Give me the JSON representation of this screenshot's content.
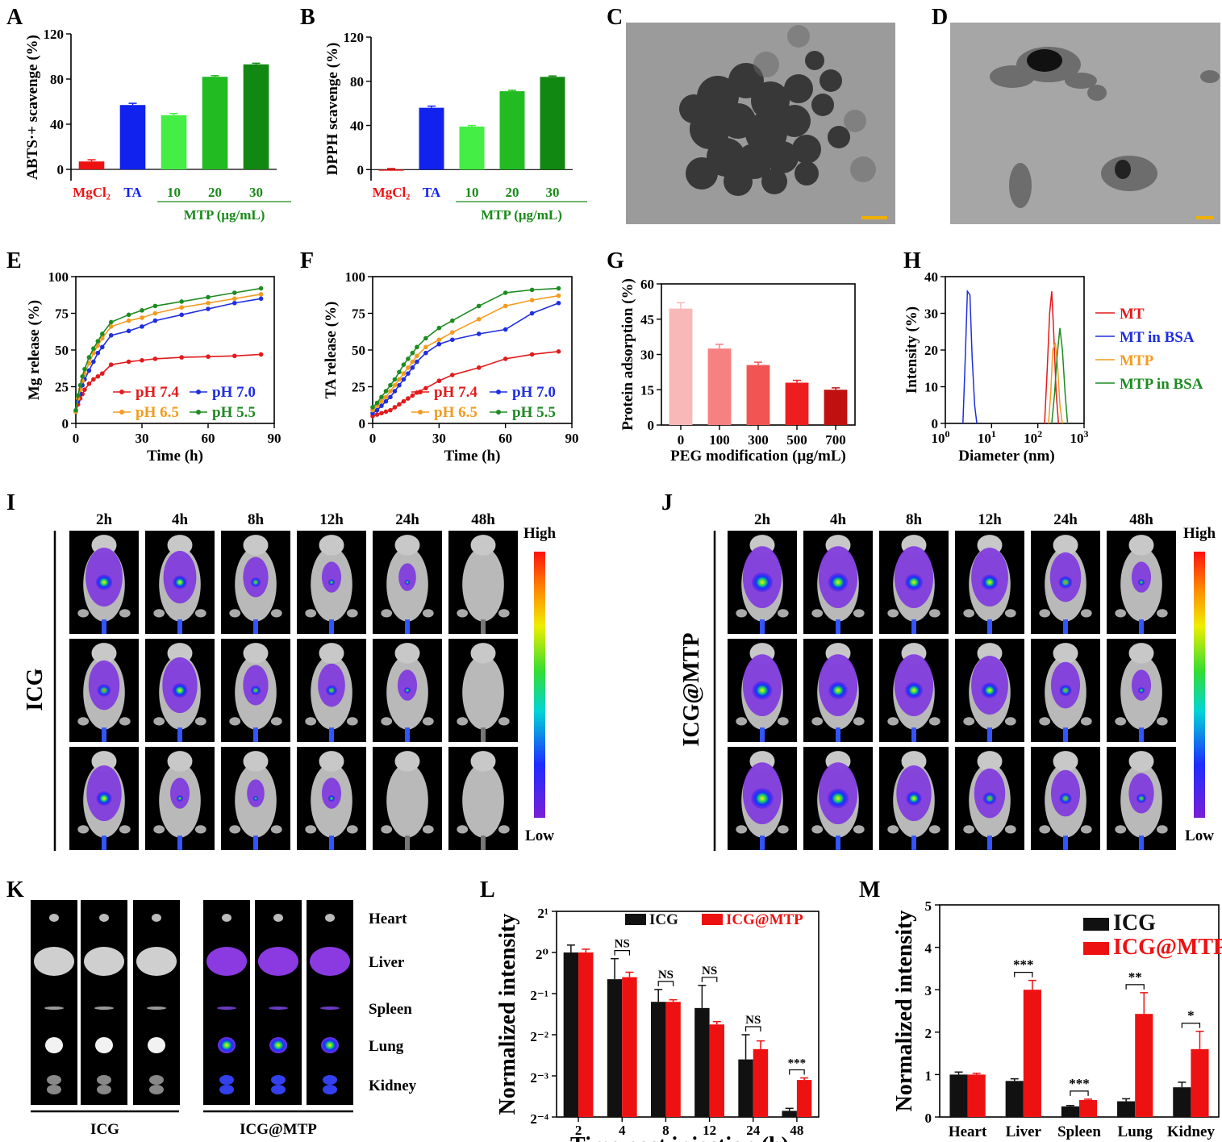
{
  "panel_letters": [
    "A",
    "B",
    "C",
    "D",
    "E",
    "F",
    "G",
    "H",
    "I",
    "J",
    "K",
    "L",
    "M"
  ],
  "colors": {
    "red": "#ee1111",
    "blue": "#1122ee",
    "lightgreen": "#44ee44",
    "green": "#22bb22",
    "darkgreen": "#118811",
    "orange": "#f39c12",
    "pH74": "#e31a1c",
    "pH70": "#1f2ee0",
    "pH65": "#f39b1f",
    "pH55": "#1e8b22"
  },
  "panelI": {
    "times": [
      "2h",
      "4h",
      "8h",
      "12h",
      "24h",
      "48h"
    ],
    "group": "ICG",
    "scale_high": "High",
    "scale_low": "Low"
  },
  "panelJ": {
    "times": [
      "2h",
      "4h",
      "8h",
      "12h",
      "24h",
      "48h"
    ],
    "group": "ICG@MTP",
    "scale_high": "High",
    "scale_low": "Low"
  },
  "panelK": {
    "organs": [
      "Heart",
      "Liver",
      "Spleen",
      "Lung",
      "Kidney"
    ],
    "groups": [
      "ICG",
      "ICG@MTP"
    ]
  },
  "chart_data": [
    {
      "panel": "A",
      "type": "bar",
      "ylabel": "ABTS·+ scavenge (%)",
      "ylim": [
        -10,
        120
      ],
      "yticks": [
        0,
        40,
        80,
        120
      ],
      "categories": [
        "MgCl2",
        "TA",
        "10",
        "20",
        "30"
      ],
      "category_labels": [
        "MgCl₂",
        "TA",
        "10",
        "20",
        "30"
      ],
      "group_label": "MTP (μg/mL)",
      "values": [
        7,
        57,
        48,
        82,
        93
      ],
      "errors": [
        1.5,
        1.5,
        1.5,
        1,
        1
      ],
      "bar_colors": [
        "#ee1111",
        "#1122ee",
        "#44ee44",
        "#22bb22",
        "#118811"
      ]
    },
    {
      "panel": "B",
      "type": "bar",
      "ylabel": "DPPH scavenge (%)",
      "ylim": [
        -10,
        120
      ],
      "yticks": [
        0,
        40,
        80,
        120
      ],
      "categories": [
        "MgCl2",
        "TA",
        "10",
        "20",
        "30"
      ],
      "category_labels": [
        "MgCl₂",
        "TA",
        "10",
        "20",
        "30"
      ],
      "group_label": "MTP (μg/mL)",
      "values": [
        -1,
        56,
        39,
        71,
        84
      ],
      "errors": [
        2,
        1.5,
        1,
        0.8,
        0.8
      ],
      "bar_colors": [
        "#ee1111",
        "#1122ee",
        "#44ee44",
        "#22bb22",
        "#118811"
      ]
    },
    {
      "panel": "E",
      "type": "line",
      "xlabel": "Time (h)",
      "ylabel": "Mg release (%)",
      "xlim": [
        0,
        90
      ],
      "ylim": [
        0,
        100
      ],
      "xticks": [
        0,
        30,
        60,
        90
      ],
      "yticks": [
        0,
        25,
        50,
        75,
        100
      ],
      "x": [
        0,
        1,
        2,
        3,
        4,
        6,
        8,
        10,
        12,
        16,
        24,
        30,
        36,
        48,
        60,
        72,
        84
      ],
      "series": [
        {
          "name": "pH 7.4",
          "color": "#e31a1c",
          "values": [
            8,
            13,
            17,
            20,
            23,
            27,
            30,
            32,
            34,
            40,
            42,
            43,
            44,
            45,
            45.5,
            46,
            47
          ]
        },
        {
          "name": "pH 7.0",
          "color": "#1f2ee0",
          "values": [
            8,
            15,
            20,
            26,
            30,
            36,
            42,
            48,
            52,
            60,
            63,
            66,
            70,
            74,
            78,
            82,
            85
          ]
        },
        {
          "name": "pH 6.5",
          "color": "#f39b1f",
          "values": [
            8,
            17,
            23,
            29,
            34,
            41,
            48,
            53,
            58,
            66,
            70,
            72,
            75,
            79,
            82,
            85,
            88
          ]
        },
        {
          "name": "pH 5.5",
          "color": "#1e8b22",
          "values": [
            9,
            19,
            26,
            32,
            37,
            45,
            51,
            56,
            61,
            69,
            74,
            77,
            80,
            83,
            86,
            89,
            92
          ]
        }
      ]
    },
    {
      "panel": "F",
      "type": "line",
      "xlabel": "Time (h)",
      "ylabel": "TA release (%)",
      "xlim": [
        0,
        90
      ],
      "ylim": [
        0,
        100
      ],
      "xticks": [
        0,
        30,
        60,
        90
      ],
      "yticks": [
        0,
        25,
        50,
        75,
        100
      ],
      "x": [
        0,
        2,
        4,
        6,
        8,
        10,
        12,
        14,
        16,
        18,
        20,
        24,
        30,
        36,
        48,
        60,
        72,
        84
      ],
      "series": [
        {
          "name": "pH 7.4",
          "color": "#e31a1c",
          "values": [
            5,
            6,
            7,
            8,
            9,
            11,
            13,
            15,
            17,
            19,
            21,
            24,
            29,
            33,
            38,
            44,
            47,
            49
          ]
        },
        {
          "name": "pH 7.0",
          "color": "#1f2ee0",
          "values": [
            7,
            9,
            12,
            15,
            18,
            22,
            26,
            30,
            34,
            38,
            42,
            48,
            54,
            57,
            61,
            64,
            75,
            82
          ]
        },
        {
          "name": "pH 6.5",
          "color": "#f39b1f",
          "values": [
            9,
            12,
            15,
            18,
            22,
            26,
            30,
            34,
            38,
            42,
            46,
            52,
            57,
            62,
            71,
            80,
            84,
            87
          ]
        },
        {
          "name": "pH 5.5",
          "color": "#1e8b22",
          "values": [
            11,
            14,
            18,
            22,
            26,
            30,
            35,
            40,
            44,
            48,
            52,
            58,
            65,
            70,
            80,
            89,
            91,
            92
          ]
        }
      ]
    },
    {
      "panel": "G",
      "type": "bar",
      "xlabel": "PEG modification (μg/mL)",
      "ylabel": "Protein adsorption (%)",
      "ylim": [
        0,
        60
      ],
      "yticks": [
        0,
        15,
        30,
        45,
        60
      ],
      "categories": [
        "0",
        "100",
        "300",
        "500",
        "700"
      ],
      "values": [
        49.5,
        32.5,
        25.5,
        18,
        15
      ],
      "errors": [
        2.5,
        1.8,
        1.2,
        1,
        0.8
      ],
      "bar_colors": [
        "#f9b8b8",
        "#f78080",
        "#f25454",
        "#ee1e1e",
        "#c01010"
      ]
    },
    {
      "panel": "H",
      "type": "line",
      "xlabel": "Diameter  (nm)",
      "ylabel": "Intensity (%)",
      "xscale": "log",
      "xlim": [
        1,
        1000
      ],
      "ylim": [
        0,
        40
      ],
      "yticks": [
        0,
        10,
        20,
        30,
        40
      ],
      "legend": "right",
      "series": [
        {
          "name": "MT",
          "color": "#e31a1c",
          "x": [
            140,
            160,
            180,
            200,
            220,
            250,
            280
          ],
          "values": [
            0,
            15,
            30,
            36,
            25,
            8,
            0
          ]
        },
        {
          "name": "MT in BSA",
          "color": "#1f2ee0",
          "x": [
            2.4,
            2.7,
            3.0,
            3.4,
            3.8,
            4.3,
            4.8
          ],
          "values": [
            0,
            18,
            36,
            35,
            18,
            5,
            0
          ]
        },
        {
          "name": "MTP",
          "color": "#f39b1f",
          "x": [
            170,
            190,
            210,
            240,
            270,
            300,
            340
          ],
          "values": [
            0,
            8,
            20,
            22,
            15,
            5,
            0
          ]
        },
        {
          "name": "MTP in BSA",
          "color": "#1e8b22",
          "x": [
            200,
            230,
            260,
            300,
            340,
            390,
            440
          ],
          "values": [
            0,
            8,
            18,
            26,
            20,
            8,
            0
          ]
        }
      ]
    },
    {
      "panel": "L",
      "type": "bar",
      "xlabel": "Time post injection (h)",
      "ylabel": "Normalized intensity",
      "yscale": "log2",
      "yticks": [
        "2⁻⁴",
        "2⁻³",
        "2⁻²",
        "2⁻¹",
        "2⁰",
        "2¹"
      ],
      "ylim_exponent": [
        -4,
        1
      ],
      "categories": [
        "2",
        "4",
        "8",
        "12",
        "24",
        "48"
      ],
      "series": [
        {
          "name": "ICG",
          "color": "#111111",
          "exponent_values": [
            0,
            -0.65,
            -1.2,
            -1.35,
            -2.6,
            -3.85
          ],
          "exponent_errors": [
            0.18,
            0.5,
            0.3,
            0.55,
            0.6,
            0.06
          ]
        },
        {
          "name": "ICG@MTP",
          "color": "#ee1111",
          "exponent_values": [
            0,
            -0.6,
            -1.2,
            -1.75,
            -2.35,
            -3.1
          ],
          "exponent_errors": [
            0.08,
            0.12,
            0.05,
            0.07,
            0.2,
            0.05
          ]
        }
      ],
      "significance": [
        "",
        "NS",
        "NS",
        "NS",
        "NS",
        "***"
      ]
    },
    {
      "panel": "M",
      "type": "bar",
      "ylabel": "Normalized intensity",
      "ylim": [
        0,
        5
      ],
      "yticks": [
        0,
        1,
        2,
        3,
        4,
        5
      ],
      "categories": [
        "Heart",
        "Liver",
        "Spleen",
        "Lung",
        "Kidney"
      ],
      "series": [
        {
          "name": "ICG",
          "color": "#111111",
          "values": [
            1.0,
            0.85,
            0.25,
            0.37,
            0.7
          ],
          "errors": [
            0.06,
            0.05,
            0.02,
            0.06,
            0.12
          ]
        },
        {
          "name": "ICG@MTP",
          "color": "#ee1111",
          "values": [
            1.0,
            3.0,
            0.4,
            2.43,
            1.6
          ],
          "errors": [
            0.03,
            0.22,
            0.02,
            0.5,
            0.42
          ]
        }
      ],
      "significance": [
        "",
        "***",
        "***",
        "**",
        "*"
      ]
    }
  ]
}
